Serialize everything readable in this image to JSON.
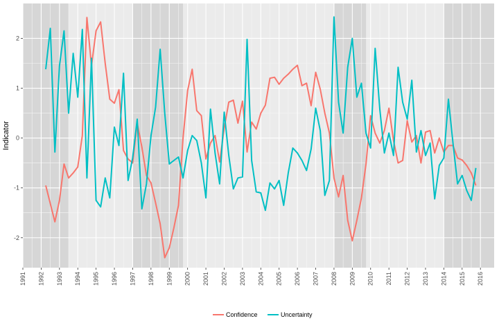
{
  "chart_data": {
    "type": "line",
    "xlabel": "",
    "ylabel": "Indicator",
    "xlim": [
      1991.0,
      2016.75
    ],
    "ylim": [
      -2.6,
      2.7
    ],
    "x_ticks": [
      1991,
      1992,
      1993,
      1994,
      1995,
      1996,
      1997,
      1998,
      1999,
      2000,
      2001,
      2002,
      2003,
      2004,
      2005,
      2006,
      2007,
      2008,
      2009,
      2010,
      2011,
      2012,
      2013,
      2014,
      2015,
      2016
    ],
    "x_tick_labels": [
      "1991",
      "1992",
      "1993",
      "1994",
      "1995",
      "1996",
      "1997",
      "1998",
      "1999",
      "2000",
      "2001",
      "2002",
      "2003",
      "2004",
      "2005",
      "2006",
      "2007",
      "2008",
      "2009",
      "2010",
      "2011",
      "2012",
      "2013",
      "2014",
      "2015",
      "2016"
    ],
    "y_ticks": [
      -2,
      -1,
      0,
      1,
      2
    ],
    "y_tick_labels": [
      "-2",
      "-1",
      "0",
      "1",
      "2"
    ],
    "grid": true,
    "legend_position": "bottom",
    "shaded_periods": [
      [
        1991.0,
        1993.5
      ],
      [
        1997.0,
        1999.75
      ],
      [
        2008.0,
        2009.75
      ],
      [
        2014.0,
        2016.75
      ]
    ],
    "series": [
      {
        "name": "Confidence",
        "color": "#F8766D",
        "x": [
          1992.25,
          1992.75,
          1993.0,
          1993.25,
          1993.5,
          1993.75,
          1994.0,
          1994.25,
          1994.5,
          1994.75,
          1995.0,
          1995.25,
          1995.5,
          1995.75,
          1996.0,
          1996.25,
          1996.5,
          1996.75,
          1997.0,
          1997.25,
          1997.5,
          1997.75,
          1998.0,
          1998.25,
          1998.5,
          1998.75,
          1999.0,
          1999.25,
          1999.5,
          1999.75,
          2000.0,
          2000.25,
          2000.5,
          2000.75,
          2001.0,
          2001.25,
          2001.5,
          2001.75,
          2002.0,
          2002.25,
          2002.5,
          2002.75,
          2003.0,
          2003.25,
          2003.5,
          2003.75,
          2004.0,
          2004.25,
          2004.5,
          2004.75,
          2005.0,
          2005.25,
          2005.5,
          2005.75,
          2006.0,
          2006.25,
          2006.5,
          2006.75,
          2007.0,
          2007.25,
          2007.5,
          2007.75,
          2008.0,
          2008.25,
          2008.5,
          2008.75,
          2009.0,
          2009.25,
          2009.5,
          2009.75,
          2010.0,
          2010.25,
          2010.5,
          2010.75,
          2011.0,
          2011.25,
          2011.5,
          2011.75,
          2012.0,
          2012.25,
          2012.5,
          2012.75,
          2013.0,
          2013.25,
          2013.5,
          2013.75,
          2014.0,
          2014.25,
          2014.5,
          2014.75,
          2015.0,
          2015.25,
          2015.5,
          2015.75
        ],
        "y": [
          -0.95,
          -1.68,
          -1.25,
          -0.52,
          -0.8,
          -0.7,
          -0.58,
          0.05,
          2.42,
          1.45,
          2.15,
          2.33,
          1.5,
          0.78,
          0.7,
          0.97,
          -0.25,
          -0.42,
          -0.5,
          0.3,
          -0.18,
          -0.75,
          -0.9,
          -1.3,
          -1.72,
          -2.4,
          -2.2,
          -1.8,
          -1.35,
          0.0,
          0.95,
          1.38,
          0.55,
          0.45,
          -0.42,
          -0.1,
          0.05,
          -0.48,
          0.2,
          0.72,
          0.76,
          0.3,
          0.74,
          -0.28,
          0.32,
          0.18,
          0.5,
          0.66,
          1.2,
          1.22,
          1.08,
          1.2,
          1.28,
          1.38,
          1.46,
          1.05,
          1.1,
          0.65,
          1.32,
          0.98,
          0.5,
          0.1,
          -0.8,
          -1.18,
          -0.75,
          -1.65,
          -2.06,
          -1.65,
          -1.2,
          -0.52,
          0.45,
          0.1,
          -0.1,
          0.15,
          0.6,
          -0.05,
          -0.5,
          -0.45,
          0.35,
          -0.08,
          0.05,
          -0.5,
          0.12,
          0.15,
          -0.3,
          0.0,
          -0.28,
          -0.15,
          -0.15,
          -0.4,
          -0.44,
          -0.55,
          -0.7,
          -0.95
        ]
      },
      {
        "name": "Uncertainty",
        "color": "#00BFC4",
        "x": [
          1992.25,
          1992.5,
          1992.75,
          1993.0,
          1993.25,
          1993.5,
          1993.75,
          1994.0,
          1994.25,
          1994.5,
          1994.75,
          1995.0,
          1995.25,
          1995.5,
          1995.75,
          1996.0,
          1996.25,
          1996.5,
          1996.75,
          1997.0,
          1997.25,
          1997.5,
          1997.75,
          1998.0,
          1998.25,
          1998.5,
          1998.75,
          1999.0,
          1999.25,
          1999.5,
          1999.75,
          2000.0,
          2000.25,
          2000.5,
          2000.75,
          2001.0,
          2001.25,
          2001.5,
          2001.75,
          2002.0,
          2002.25,
          2002.5,
          2002.75,
          2003.0,
          2003.25,
          2003.5,
          2003.75,
          2004.0,
          2004.25,
          2004.5,
          2004.75,
          2005.0,
          2005.25,
          2005.5,
          2005.75,
          2006.0,
          2006.25,
          2006.5,
          2006.75,
          2007.0,
          2007.25,
          2007.5,
          2007.75,
          2008.0,
          2008.25,
          2008.5,
          2008.75,
          2009.0,
          2009.25,
          2009.5,
          2009.75,
          2010.0,
          2010.25,
          2010.5,
          2010.75,
          2011.0,
          2011.25,
          2011.5,
          2011.75,
          2012.0,
          2012.25,
          2012.5,
          2012.75,
          2013.0,
          2013.25,
          2013.5,
          2013.75,
          2014.0,
          2014.25,
          2014.5,
          2014.75,
          2015.0,
          2015.25,
          2015.5,
          2015.75
        ],
        "y": [
          1.38,
          2.2,
          -0.28,
          1.45,
          2.15,
          0.5,
          1.7,
          0.82,
          2.18,
          -0.8,
          1.6,
          -1.25,
          -1.38,
          -0.8,
          -1.2,
          0.22,
          -0.15,
          1.3,
          -0.85,
          -0.4,
          0.38,
          -1.42,
          -0.92,
          0.05,
          0.62,
          1.78,
          0.5,
          -0.52,
          -0.45,
          -0.38,
          -0.8,
          -0.25,
          0.05,
          -0.05,
          -0.5,
          -1.2,
          0.58,
          -0.3,
          -0.92,
          0.52,
          -0.35,
          -1.02,
          -0.8,
          -0.78,
          1.98,
          -0.45,
          -1.08,
          -1.1,
          -1.45,
          -0.9,
          -1.02,
          -0.85,
          -1.35,
          -0.7,
          -0.2,
          -0.3,
          -0.45,
          -0.65,
          -0.22,
          0.6,
          0.15,
          -1.15,
          -0.85,
          2.43,
          0.72,
          0.1,
          1.42,
          2.0,
          0.82,
          1.1,
          0.1,
          -0.2,
          1.8,
          0.58,
          -0.3,
          0.1,
          -0.35,
          1.42,
          0.72,
          0.38,
          1.16,
          -0.28,
          0.15,
          -0.35,
          -0.1,
          -1.22,
          -0.55,
          -0.4,
          0.78,
          -0.1,
          -0.92,
          -0.75,
          -1.05,
          -1.25,
          -0.6
        ]
      }
    ]
  }
}
